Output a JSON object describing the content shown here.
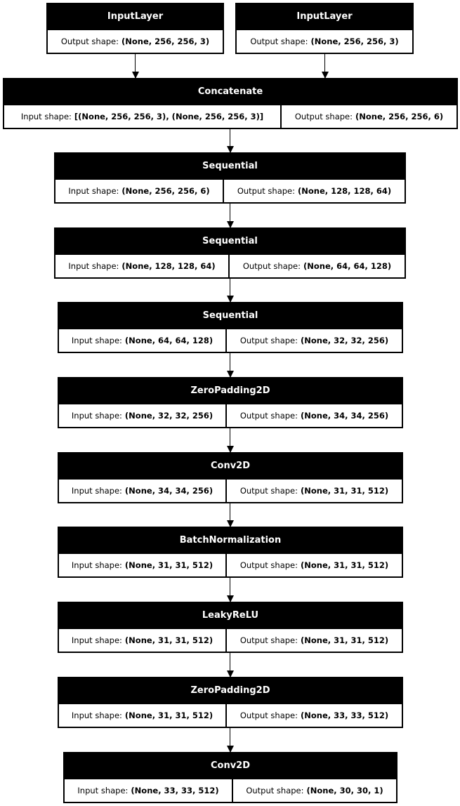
{
  "layers": [
    {
      "name": "InputLayer",
      "output_label": "Output shape:",
      "output": "(None, 256, 256, 3)"
    },
    {
      "name": "InputLayer",
      "output_label": "Output shape:",
      "output": "(None, 256, 256, 3)"
    },
    {
      "name": "Concatenate",
      "input_label": "Input shape:",
      "input": "[(None, 256, 256, 3), (None, 256, 256, 3)]",
      "output_label": "Output shape:",
      "output": "(None, 256, 256, 6)"
    },
    {
      "name": "Sequential",
      "input_label": "Input shape:",
      "input": "(None, 256, 256, 6)",
      "output_label": "Output shape:",
      "output": "(None, 128, 128, 64)"
    },
    {
      "name": "Sequential",
      "input_label": "Input shape:",
      "input": "(None, 128, 128, 64)",
      "output_label": "Output shape:",
      "output": "(None, 64, 64, 128)"
    },
    {
      "name": "Sequential",
      "input_label": "Input shape:",
      "input": "(None, 64, 64, 128)",
      "output_label": "Output shape:",
      "output": "(None, 32, 32, 256)"
    },
    {
      "name": "ZeroPadding2D",
      "input_label": "Input shape:",
      "input": "(None, 32, 32, 256)",
      "output_label": "Output shape:",
      "output": "(None, 34, 34, 256)"
    },
    {
      "name": "Conv2D",
      "input_label": "Input shape:",
      "input": "(None, 34, 34, 256)",
      "output_label": "Output shape:",
      "output": "(None, 31, 31, 512)"
    },
    {
      "name": "BatchNormalization",
      "input_label": "Input shape:",
      "input": "(None, 31, 31, 512)",
      "output_label": "Output shape:",
      "output": "(None, 31, 31, 512)"
    },
    {
      "name": "LeakyReLU",
      "input_label": "Input shape:",
      "input": "(None, 31, 31, 512)",
      "output_label": "Output shape:",
      "output": "(None, 31, 31, 512)"
    },
    {
      "name": "ZeroPadding2D",
      "input_label": "Input shape:",
      "input": "(None, 31, 31, 512)",
      "output_label": "Output shape:",
      "output": "(None, 33, 33, 512)"
    },
    {
      "name": "Conv2D",
      "input_label": "Input shape:",
      "input": "(None, 33, 33, 512)",
      "output_label": "Output shape:",
      "output": "(None, 30, 30, 1)"
    }
  ]
}
